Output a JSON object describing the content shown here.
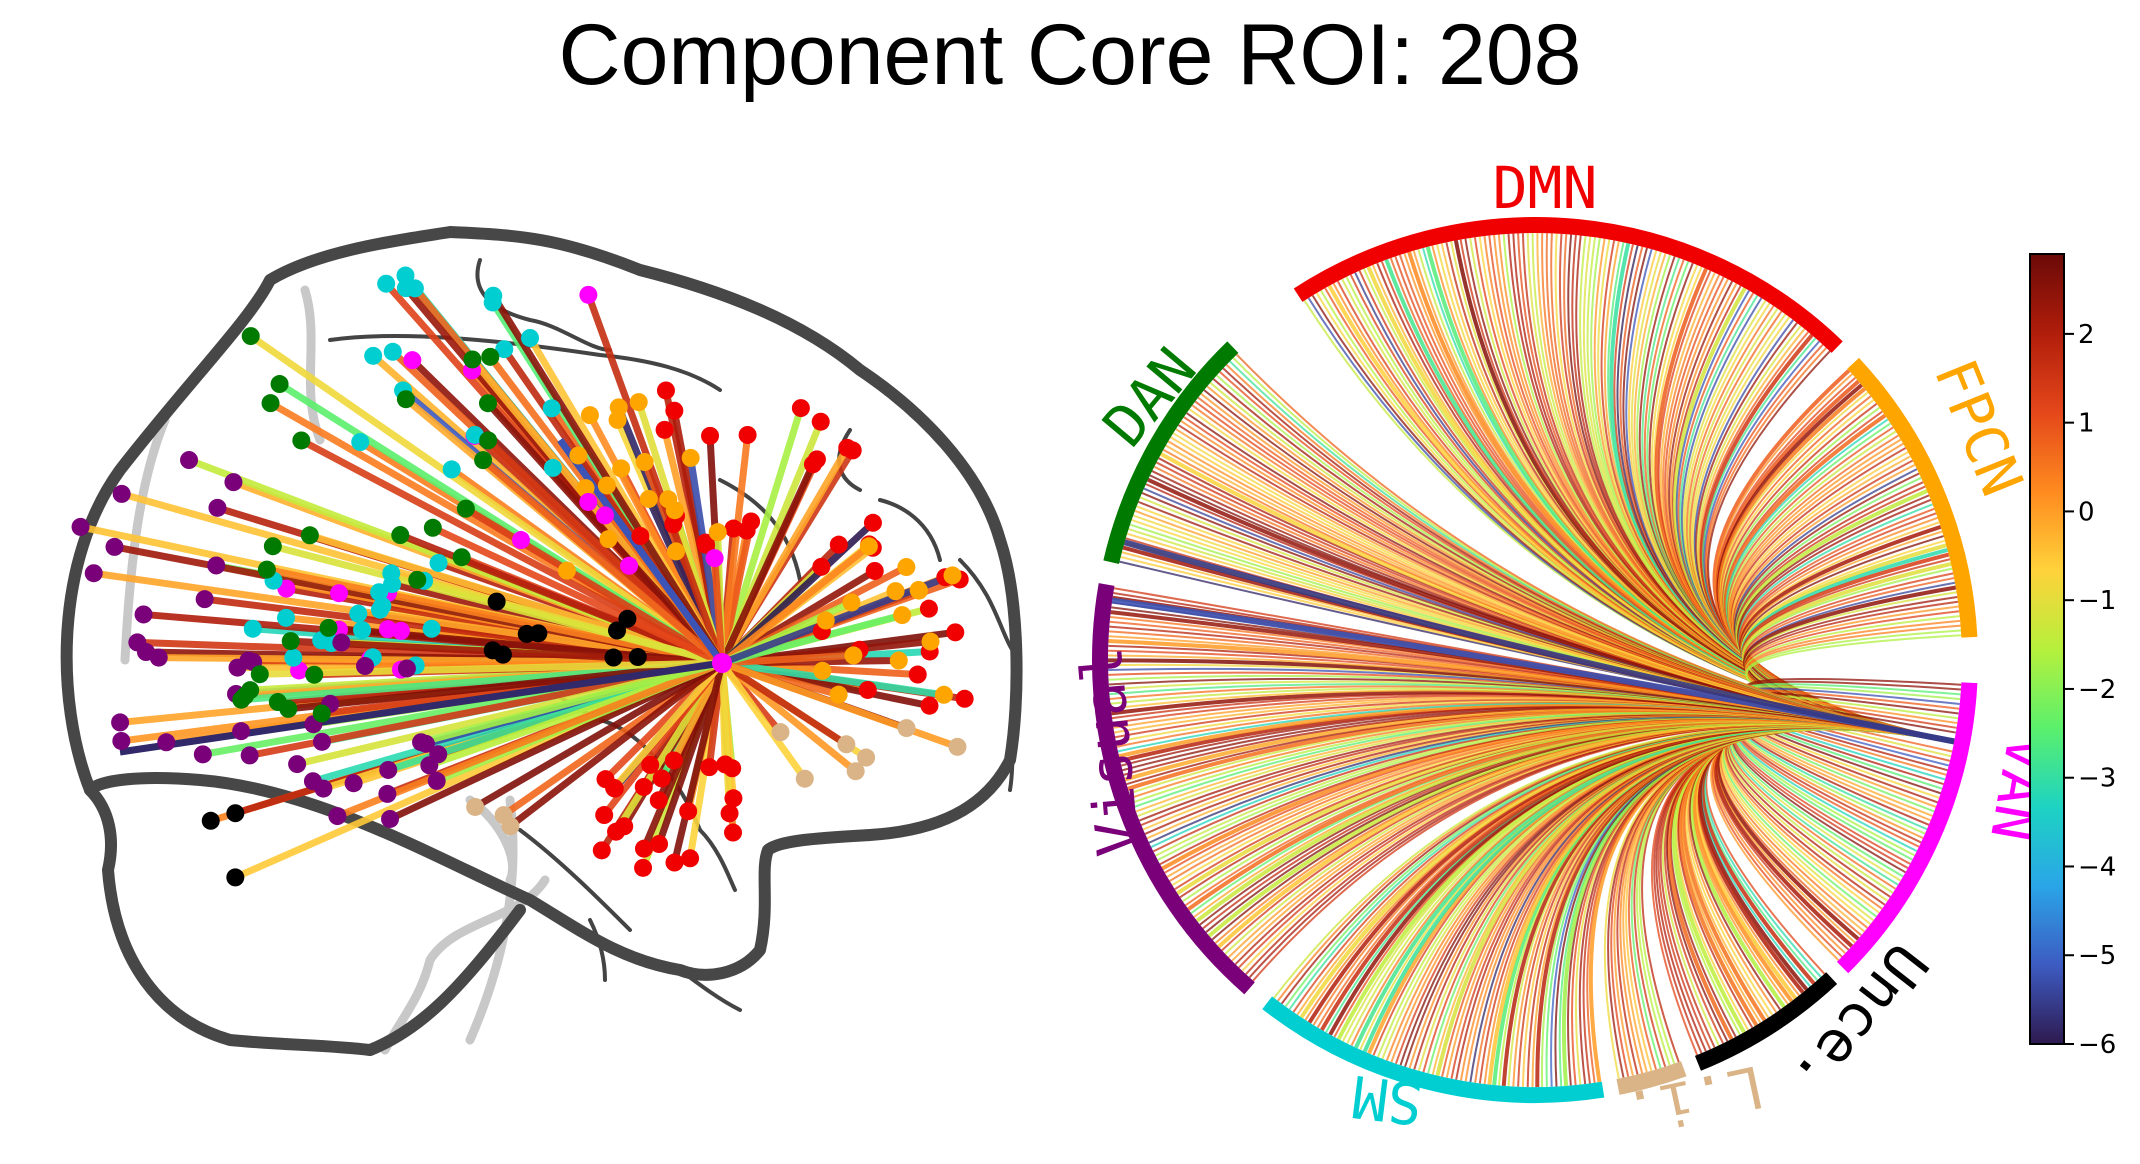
{
  "title": "Component Core ROI: 208",
  "networks": [
    {
      "key": "DMN",
      "label": "DMN",
      "color": "#f00000"
    },
    {
      "key": "FPCN",
      "label": "FPCN",
      "color": "#ffa500"
    },
    {
      "key": "VAN",
      "label": "VAN",
      "color": "#ff00ff"
    },
    {
      "key": "Unce",
      "label": "Unce.",
      "color": "#000000"
    },
    {
      "key": "Li",
      "label": "L.i.",
      "color": "#dab486"
    },
    {
      "key": "SM",
      "label": "SM",
      "color": "#00ced1"
    },
    {
      "key": "Visual",
      "label": "Visual",
      "color": "#7a007a"
    },
    {
      "key": "DAN",
      "label": "DAN",
      "color": "#007a00"
    }
  ],
  "core_roi": {
    "network": "VAN",
    "color": "#ff00ff"
  },
  "colorbar": {
    "min": -6,
    "max": 2.9,
    "ticks": [
      "2",
      "1",
      "0",
      "−1",
      "−2",
      "−3",
      "−4",
      "−5",
      "−6"
    ],
    "tick_values": [
      2,
      1,
      0,
      -1,
      -2,
      -3,
      -4,
      -5,
      -6
    ],
    "colormap": [
      "#2e1a4f",
      "#3d5bc2",
      "#2aa5e8",
      "#1dd3c2",
      "#5bf06c",
      "#b6f03c",
      "#ffd23a",
      "#ff8a1f",
      "#e4471a",
      "#b01d0b",
      "#6b0a08"
    ]
  }
}
